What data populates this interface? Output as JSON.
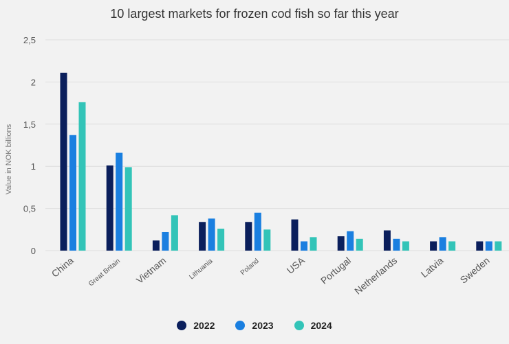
{
  "chart_data": {
    "type": "bar",
    "title": "10 largest markets for frozen cod fish so far this year",
    "xlabel": "",
    "ylabel": "Value in NOK billions",
    "ylim": [
      0,
      2.5
    ],
    "yticks": [
      "0",
      "0,5",
      "1",
      "1,5",
      "2",
      "2,5"
    ],
    "grid": true,
    "legend_position": "bottom",
    "categories": [
      "China",
      "Great Britain",
      "Vietnam",
      "Lithuania",
      "Poland",
      "USA",
      "Portugal",
      "Netherlands",
      "Latvia",
      "Sweden"
    ],
    "series": [
      {
        "name": "2022",
        "color": "#0b1f5c",
        "values": [
          2.11,
          1.01,
          0.12,
          0.34,
          0.34,
          0.37,
          0.17,
          0.24,
          0.11,
          0.11
        ]
      },
      {
        "name": "2023",
        "color": "#1a7fe0",
        "values": [
          1.37,
          1.16,
          0.22,
          0.38,
          0.45,
          0.11,
          0.23,
          0.14,
          0.16,
          0.11
        ]
      },
      {
        "name": "2024",
        "color": "#33c4b8",
        "values": [
          1.76,
          0.99,
          0.42,
          0.26,
          0.25,
          0.16,
          0.14,
          0.11,
          0.11,
          0.11
        ]
      }
    ]
  }
}
